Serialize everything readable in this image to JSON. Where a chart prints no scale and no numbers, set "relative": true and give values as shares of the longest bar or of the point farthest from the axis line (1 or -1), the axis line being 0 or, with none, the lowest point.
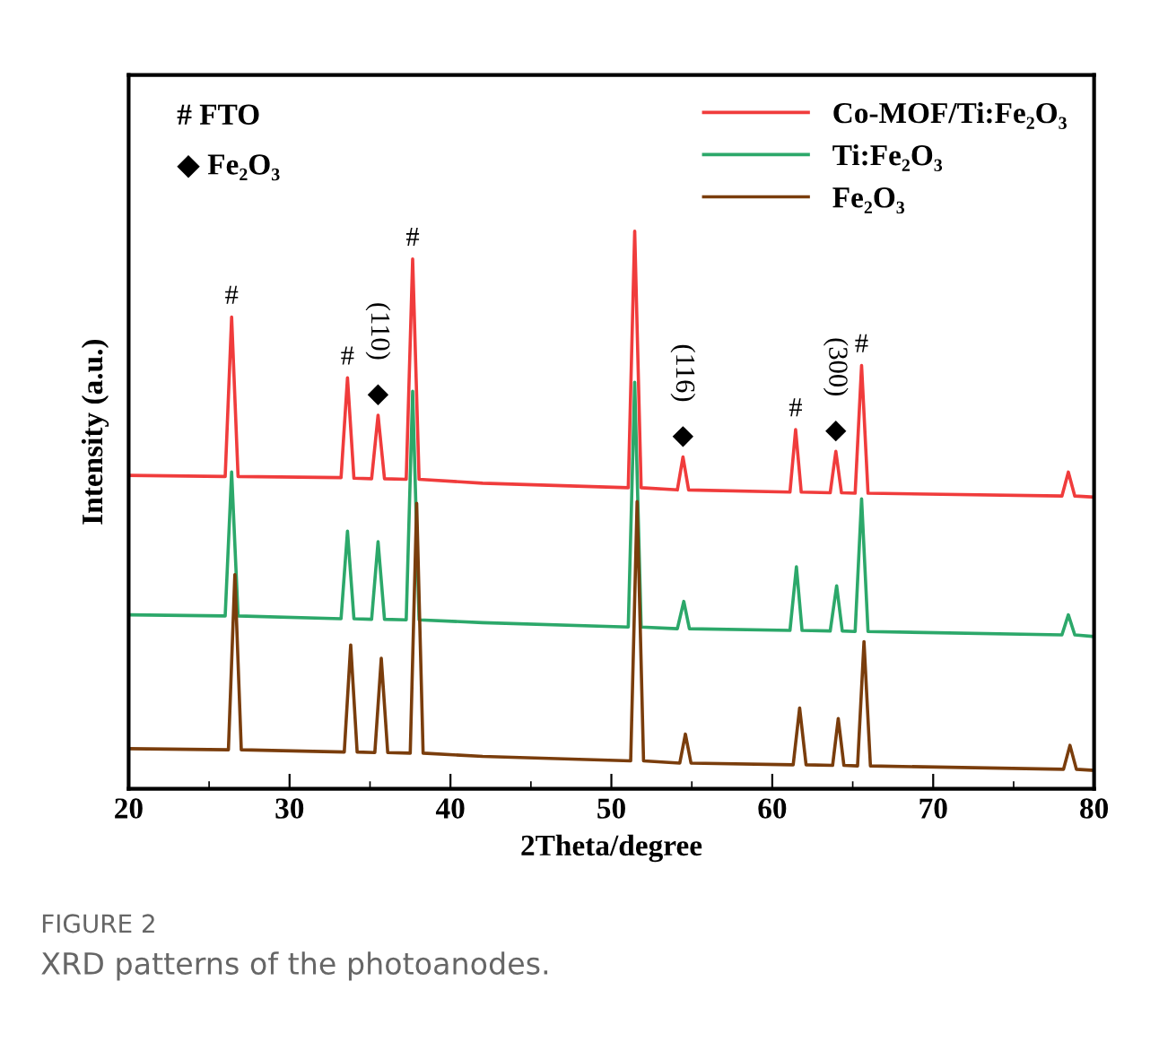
{
  "chart_data": {
    "type": "line",
    "relative": true,
    "title": "FIGURE 2",
    "subtitle": "XRD patterns of the photoanodes.",
    "xlabel": "2Theta/degree",
    "ylabel": "Intensity (a.u.)",
    "xlim": [
      20,
      80
    ],
    "xticks": [
      20,
      30,
      40,
      50,
      60,
      70,
      80
    ],
    "grid": false,
    "legend": "top right",
    "marker": "none",
    "line_style": "solid",
    "tick_labels": "x",
    "series": [
      {
        "name": "Co-MOF/Ti:Fe₂O₃",
        "color": "#f03c3c",
        "x": [
          20,
          26.0,
          26.4,
          26.8,
          33.2,
          33.6,
          34.0,
          35.1,
          35.5,
          35.9,
          37.25,
          37.65,
          38.05,
          42,
          51.05,
          51.45,
          51.85,
          54.1,
          54.45,
          54.8,
          61.1,
          61.45,
          61.8,
          63.6,
          63.95,
          64.3,
          65.15,
          65.55,
          65.95,
          78.0,
          78.4,
          78.8,
          80
        ],
        "values": [
          0.562,
          0.56,
          0.846,
          0.56,
          0.558,
          0.737,
          0.557,
          0.556,
          0.67,
          0.556,
          0.555,
          0.95,
          0.555,
          0.548,
          0.54,
          1.0,
          0.54,
          0.536,
          0.595,
          0.536,
          0.532,
          0.644,
          0.532,
          0.531,
          0.605,
          0.531,
          0.53,
          0.759,
          0.53,
          0.525,
          0.568,
          0.525,
          0.523
        ]
      },
      {
        "name": "Ti:Fe₂O₃",
        "color": "#2ca86a",
        "x": [
          20,
          26.0,
          26.4,
          26.8,
          33.2,
          33.6,
          34.0,
          35.1,
          35.5,
          35.9,
          37.25,
          37.65,
          38.05,
          42,
          51.05,
          51.45,
          51.85,
          54.1,
          54.5,
          54.85,
          61.1,
          61.5,
          61.85,
          63.6,
          64.0,
          64.35,
          65.15,
          65.55,
          65.95,
          78.0,
          78.4,
          78.8,
          80
        ],
        "values": [
          0.312,
          0.31,
          0.568,
          0.31,
          0.305,
          0.462,
          0.305,
          0.304,
          0.443,
          0.304,
          0.303,
          0.713,
          0.303,
          0.298,
          0.29,
          0.729,
          0.29,
          0.287,
          0.336,
          0.287,
          0.284,
          0.398,
          0.284,
          0.283,
          0.364,
          0.283,
          0.282,
          0.52,
          0.282,
          0.276,
          0.312,
          0.276,
          0.273
        ]
      },
      {
        "name": "Fe₂O₃",
        "color": "#7a3d0c",
        "x": [
          20,
          26.2,
          26.6,
          27.0,
          33.4,
          33.8,
          34.2,
          35.3,
          35.7,
          36.1,
          37.5,
          37.9,
          38.3,
          42,
          51.2,
          51.6,
          52.0,
          54.25,
          54.6,
          54.95,
          61.3,
          61.7,
          62.1,
          63.75,
          64.1,
          64.45,
          65.3,
          65.7,
          66.1,
          78.1,
          78.5,
          78.9,
          80
        ],
        "values": [
          0.072,
          0.07,
          0.384,
          0.07,
          0.066,
          0.258,
          0.066,
          0.065,
          0.234,
          0.065,
          0.064,
          0.512,
          0.064,
          0.058,
          0.05,
          0.515,
          0.05,
          0.046,
          0.098,
          0.046,
          0.043,
          0.145,
          0.043,
          0.042,
          0.126,
          0.042,
          0.041,
          0.264,
          0.041,
          0.035,
          0.078,
          0.035,
          0.033
        ]
      }
    ],
    "annotations": [
      "# FTO",
      "◆ Fe₂O₃",
      {
        "text": "#",
        "x": 26.4,
        "y": 0.846
      },
      {
        "text": "#",
        "x": 33.6,
        "y": 0.737
      },
      {
        "text": "◆",
        "x": 35.5,
        "y": 0.67
      },
      {
        "text": "(110)",
        "x": 35.5,
        "y": 0.67
      },
      {
        "text": "#",
        "x": 37.65,
        "y": 0.95
      },
      {
        "text": "◆",
        "x": 54.45,
        "y": 0.595
      },
      {
        "text": "(116)",
        "x": 54.45,
        "y": 0.595
      },
      {
        "text": "#",
        "x": 61.45,
        "y": 0.644
      },
      {
        "text": "◆",
        "x": 63.95,
        "y": 0.605
      },
      {
        "text": "(300)",
        "x": 63.95,
        "y": 0.605
      },
      {
        "text": "#",
        "x": 65.55,
        "y": 0.759
      }
    ]
  }
}
